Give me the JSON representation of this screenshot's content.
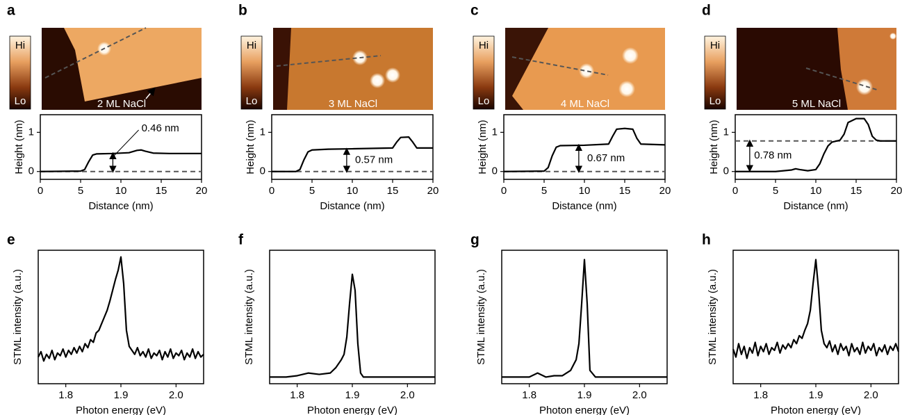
{
  "chart_data": [
    {
      "type": "line",
      "panel": "a",
      "image_label": "2 ML NaCl",
      "colorbar": {
        "high": "Hi",
        "low": "Lo"
      },
      "x_label": "Distance (nm)",
      "y_label": "Height (nm)",
      "xlim": [
        0,
        20
      ],
      "ylim": [
        -0.2,
        1.45
      ],
      "xticks": [
        0,
        5,
        10,
        15,
        20
      ],
      "yticks": [
        0,
        1
      ],
      "color": "#000000",
      "reference_line": 0,
      "annotation": "0.46 nm",
      "x": [
        0,
        5,
        5.5,
        6,
        6.5,
        7,
        9,
        11,
        12,
        12.5,
        13,
        14,
        16,
        20
      ],
      "values": [
        0,
        0.01,
        0.05,
        0.25,
        0.42,
        0.45,
        0.46,
        0.48,
        0.54,
        0.55,
        0.52,
        0.47,
        0.46,
        0.46
      ]
    },
    {
      "type": "line",
      "panel": "b",
      "image_label": "3 ML NaCl",
      "colorbar": {
        "high": "Hi",
        "low": "Lo"
      },
      "x_label": "Distance (nm)",
      "y_label": "Height (nm)",
      "xlim": [
        0,
        20
      ],
      "ylim": [
        -0.2,
        1.45
      ],
      "xticks": [
        0,
        5,
        10,
        15,
        20
      ],
      "yticks": [
        0,
        1
      ],
      "color": "#000000",
      "reference_line": 0,
      "annotation": "0.57 nm",
      "x": [
        0,
        3,
        3.5,
        4,
        4.5,
        5,
        7,
        10,
        15,
        15.5,
        16,
        17,
        17.5,
        18,
        20
      ],
      "values": [
        0,
        0,
        0.05,
        0.3,
        0.5,
        0.55,
        0.57,
        0.58,
        0.6,
        0.75,
        0.87,
        0.88,
        0.75,
        0.6,
        0.6
      ]
    },
    {
      "type": "line",
      "panel": "c",
      "image_label": "4 ML NaCl",
      "colorbar": {
        "high": "Hi",
        "low": "Lo"
      },
      "x_label": "Distance (nm)",
      "y_label": "Height (nm)",
      "xlim": [
        0,
        20
      ],
      "ylim": [
        -0.2,
        1.45
      ],
      "xticks": [
        0,
        5,
        10,
        15,
        20
      ],
      "yticks": [
        0,
        1
      ],
      "color": "#000000",
      "reference_line": 0,
      "annotation": "0.67 nm",
      "x": [
        0,
        5,
        5.5,
        6,
        6.5,
        7,
        10,
        13,
        13.5,
        14,
        15,
        16,
        16.5,
        17,
        20
      ],
      "values": [
        0,
        0.01,
        0.1,
        0.4,
        0.62,
        0.66,
        0.67,
        0.7,
        0.9,
        1.08,
        1.1,
        1.08,
        0.85,
        0.7,
        0.68
      ]
    },
    {
      "type": "line",
      "panel": "d",
      "image_label": "5 ML NaCl",
      "colorbar": {
        "high": "Hi",
        "low": "Lo"
      },
      "x_label": "Distance (nm)",
      "y_label": "Height (nm)",
      "xlim": [
        0,
        20
      ],
      "ylim": [
        -0.2,
        1.45
      ],
      "xticks": [
        0,
        5,
        10,
        15,
        20
      ],
      "yticks": [
        0,
        1
      ],
      "color": "#000000",
      "reference_line": 0.78,
      "annotation": "0.78 nm",
      "x": [
        0,
        5,
        7,
        7.5,
        8,
        9,
        10,
        10.5,
        11,
        11.5,
        12,
        13,
        13.5,
        14,
        15,
        16,
        16.5,
        17,
        17.5,
        18,
        20
      ],
      "values": [
        0,
        0,
        0.04,
        0.07,
        0.05,
        0.02,
        0.05,
        0.2,
        0.45,
        0.65,
        0.75,
        0.8,
        0.95,
        1.25,
        1.35,
        1.35,
        1.2,
        0.9,
        0.8,
        0.78,
        0.78
      ]
    },
    {
      "type": "line",
      "panel": "e",
      "x_label": "Photon energy (eV)",
      "y_label": "STML intensity (a.u.)",
      "xlim": [
        1.75,
        2.05
      ],
      "ylim": [
        0,
        1
      ],
      "xticks": [
        1.8,
        1.9,
        {
          "value": 2,
          "label": "2.0"
        }
      ],
      "color": "#000000",
      "x": [
        1.75,
        1.755,
        1.76,
        1.765,
        1.77,
        1.775,
        1.78,
        1.785,
        1.79,
        1.795,
        1.8,
        1.805,
        1.81,
        1.815,
        1.82,
        1.825,
        1.83,
        1.835,
        1.84,
        1.845,
        1.85,
        1.855,
        1.86,
        1.865,
        1.87,
        1.875,
        1.88,
        1.885,
        1.89,
        1.895,
        1.9,
        1.905,
        1.91,
        1.915,
        1.92,
        1.925,
        1.93,
        1.935,
        1.94,
        1.945,
        1.95,
        1.955,
        1.96,
        1.965,
        1.97,
        1.975,
        1.98,
        1.985,
        1.99,
        1.995,
        2.0,
        2.005,
        2.01,
        2.015,
        2.02,
        2.025,
        2.03,
        2.035,
        2.04,
        2.045,
        2.05
      ],
      "values": [
        0.2,
        0.24,
        0.17,
        0.22,
        0.19,
        0.25,
        0.18,
        0.23,
        0.21,
        0.26,
        0.2,
        0.25,
        0.22,
        0.27,
        0.23,
        0.28,
        0.24,
        0.3,
        0.27,
        0.33,
        0.31,
        0.38,
        0.4,
        0.45,
        0.5,
        0.55,
        0.62,
        0.7,
        0.78,
        0.85,
        0.95,
        0.75,
        0.4,
        0.28,
        0.25,
        0.22,
        0.27,
        0.21,
        0.24,
        0.2,
        0.26,
        0.19,
        0.23,
        0.21,
        0.25,
        0.18,
        0.24,
        0.2,
        0.26,
        0.19,
        0.23,
        0.21,
        0.25,
        0.18,
        0.23,
        0.2,
        0.26,
        0.19,
        0.24,
        0.2,
        0.22
      ]
    },
    {
      "type": "line",
      "panel": "f",
      "x_label": "Photon energy (eV)",
      "y_label": "STML intensity (a.u.)",
      "xlim": [
        1.75,
        2.05
      ],
      "ylim": [
        0,
        1
      ],
      "xticks": [
        1.8,
        1.9,
        {
          "value": 2,
          "label": "2.0"
        }
      ],
      "color": "#000000",
      "x": [
        1.75,
        1.78,
        1.8,
        1.82,
        1.84,
        1.86,
        1.87,
        1.88,
        1.885,
        1.89,
        1.895,
        1.9,
        1.905,
        1.91,
        1.915,
        1.92,
        1.95,
        2.0,
        2.05
      ],
      "values": [
        0.05,
        0.05,
        0.06,
        0.08,
        0.07,
        0.08,
        0.12,
        0.18,
        0.22,
        0.35,
        0.6,
        0.82,
        0.7,
        0.3,
        0.08,
        0.05,
        0.05,
        0.05,
        0.05
      ]
    },
    {
      "type": "line",
      "panel": "g",
      "x_label": "Photon energy (eV)",
      "y_label": "STML intensity (a.u.)",
      "xlim": [
        1.75,
        2.05
      ],
      "ylim": [
        0,
        1
      ],
      "xticks": [
        1.8,
        1.9,
        {
          "value": 2,
          "label": "2.0"
        }
      ],
      "color": "#000000",
      "x": [
        1.75,
        1.8,
        1.815,
        1.83,
        1.845,
        1.86,
        1.875,
        1.885,
        1.89,
        1.895,
        1.9,
        1.905,
        1.91,
        1.92,
        1.95,
        2.05
      ],
      "values": [
        0.05,
        0.05,
        0.08,
        0.05,
        0.06,
        0.06,
        0.1,
        0.18,
        0.3,
        0.6,
        0.93,
        0.6,
        0.1,
        0.05,
        0.05,
        0.05
      ]
    },
    {
      "type": "line",
      "panel": "h",
      "x_label": "Photon energy (eV)",
      "y_label": "STML intensity (a.u.)",
      "xlim": [
        1.75,
        2.05
      ],
      "ylim": [
        0,
        1
      ],
      "xticks": [
        1.8,
        1.9,
        {
          "value": 2,
          "label": "2.0"
        }
      ],
      "color": "#000000",
      "x": [
        1.75,
        1.755,
        1.76,
        1.765,
        1.77,
        1.775,
        1.78,
        1.785,
        1.79,
        1.795,
        1.8,
        1.805,
        1.81,
        1.815,
        1.82,
        1.825,
        1.83,
        1.835,
        1.84,
        1.845,
        1.85,
        1.855,
        1.86,
        1.865,
        1.87,
        1.875,
        1.88,
        1.885,
        1.89,
        1.895,
        1.9,
        1.905,
        1.91,
        1.915,
        1.92,
        1.925,
        1.93,
        1.935,
        1.94,
        1.945,
        1.95,
        1.955,
        1.96,
        1.965,
        1.97,
        1.975,
        1.98,
        1.985,
        1.99,
        1.995,
        2.0,
        2.005,
        2.01,
        2.015,
        2.02,
        2.025,
        2.03,
        2.035,
        2.04,
        2.045,
        2.05
      ],
      "values": [
        0.26,
        0.2,
        0.3,
        0.22,
        0.28,
        0.19,
        0.27,
        0.23,
        0.31,
        0.21,
        0.28,
        0.24,
        0.3,
        0.22,
        0.27,
        0.25,
        0.31,
        0.23,
        0.29,
        0.26,
        0.3,
        0.27,
        0.33,
        0.3,
        0.36,
        0.34,
        0.4,
        0.45,
        0.55,
        0.75,
        0.93,
        0.7,
        0.4,
        0.3,
        0.27,
        0.32,
        0.24,
        0.29,
        0.22,
        0.3,
        0.25,
        0.28,
        0.21,
        0.3,
        0.24,
        0.27,
        0.22,
        0.31,
        0.23,
        0.28,
        0.25,
        0.3,
        0.21,
        0.27,
        0.24,
        0.29,
        0.22,
        0.28,
        0.25,
        0.3,
        0.24
      ]
    }
  ]
}
